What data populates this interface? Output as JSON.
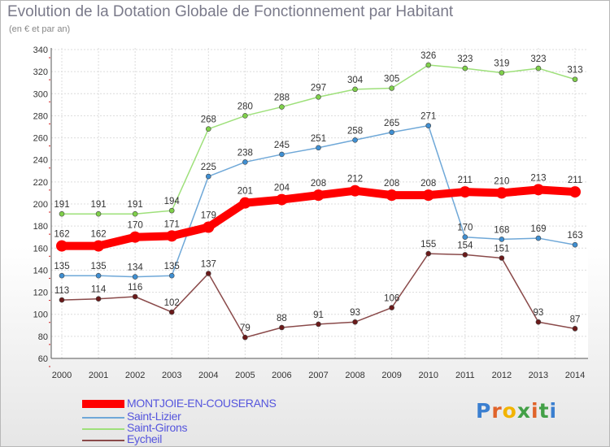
{
  "title": "Evolution de la Dotation Globale de Fonctionnement par Habitant",
  "subtitle": "(en € et par an)",
  "logo_text": "Proxiti",
  "chart_data": {
    "type": "line",
    "title": "Evolution de la Dotation Globale de Fonctionnement par Habitant",
    "subtitle": "(en € et par an)",
    "x": [
      2000,
      2001,
      2002,
      2003,
      2004,
      2005,
      2006,
      2007,
      2008,
      2009,
      2010,
      2011,
      2012,
      2013,
      2014
    ],
    "ylim": [
      60,
      340
    ],
    "yticks": [
      60,
      80,
      100,
      120,
      140,
      160,
      180,
      200,
      220,
      240,
      260,
      280,
      300,
      320,
      340
    ],
    "grid": true,
    "legend_position": "bottom-left",
    "series": [
      {
        "name": "MONTJOIE-EN-COUSERANS",
        "color": "#ff0000",
        "marker": "#ff0000",
        "values": [
          162,
          162,
          170,
          171,
          179,
          201,
          204,
          208,
          212,
          208,
          208,
          211,
          210,
          213,
          211
        ]
      },
      {
        "name": "Saint-Lizier",
        "color": "#6fa8d8",
        "marker": "#3f8fd2",
        "values": [
          135,
          135,
          134,
          135,
          225,
          238,
          245,
          251,
          258,
          265,
          271,
          170,
          168,
          169,
          163
        ]
      },
      {
        "name": "Saint-Girons",
        "color": "#9ee07a",
        "marker": "#7fd04a",
        "values": [
          191,
          191,
          191,
          194,
          268,
          280,
          288,
          297,
          304,
          305,
          326,
          323,
          319,
          323,
          313
        ]
      },
      {
        "name": "Eycheil",
        "color": "#8a4a4a",
        "marker": "#6b1a1a",
        "values": [
          113,
          114,
          116,
          102,
          137,
          79,
          88,
          91,
          93,
          106,
          155,
          154,
          151,
          93,
          87
        ]
      }
    ]
  }
}
